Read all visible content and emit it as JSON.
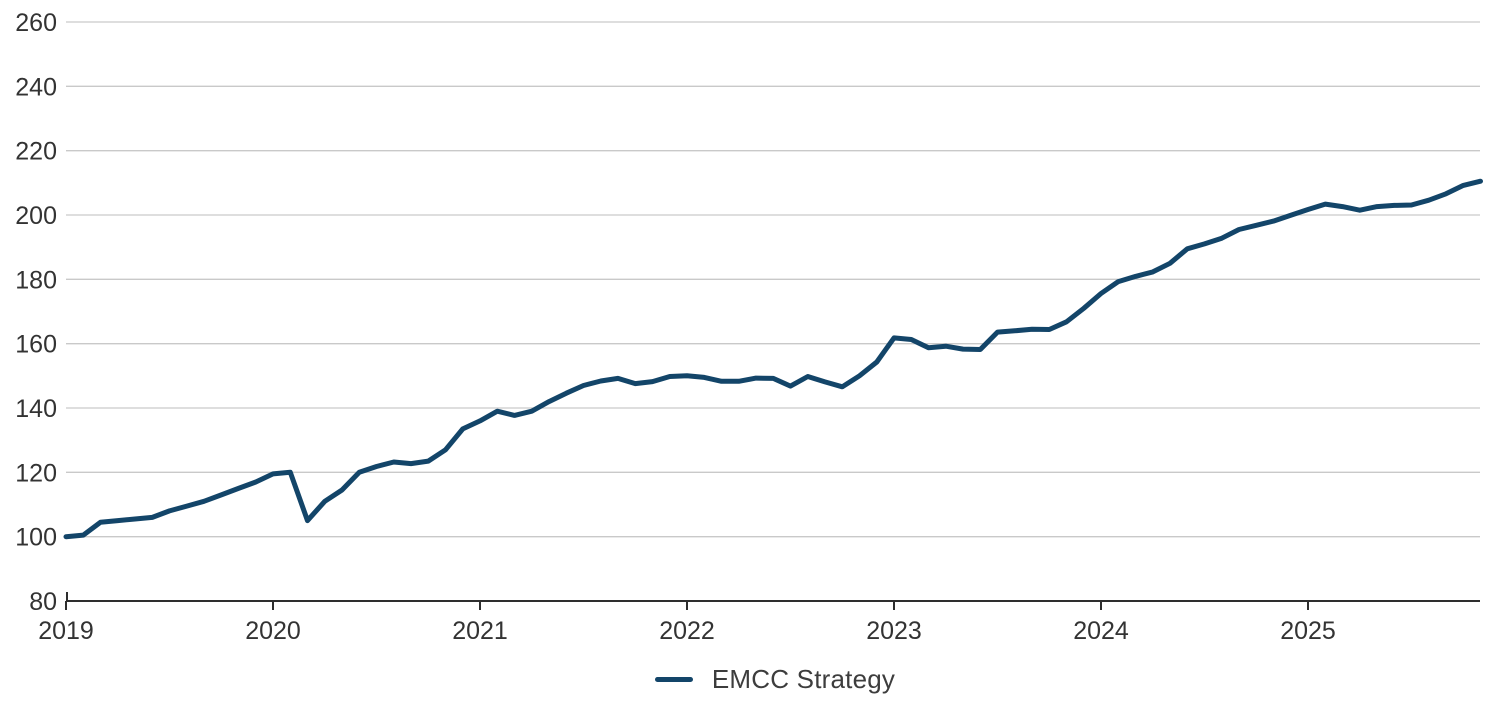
{
  "chart_data": {
    "type": "line",
    "title": "",
    "xlabel": "",
    "ylabel": "",
    "ylim": [
      80,
      260
    ],
    "yticks": [
      80,
      100,
      120,
      140,
      160,
      180,
      200,
      220,
      240,
      260
    ],
    "ytick_labels": [
      "80",
      "100",
      "120",
      "140",
      "160",
      "180",
      "200",
      "220",
      "240",
      "260"
    ],
    "xticks": [
      2019,
      2020,
      2021,
      2022,
      2023,
      2024,
      2025
    ],
    "xtick_labels": [
      "2019",
      "2020",
      "2021",
      "2022",
      "2023",
      "2024",
      "2025"
    ],
    "grid": "horizontal",
    "legend_position": "bottom-center",
    "x": [
      "2019-01",
      "2019-02",
      "2019-03",
      "2019-04",
      "2019-05",
      "2019-06",
      "2019-07",
      "2019-08",
      "2019-09",
      "2019-10",
      "2019-11",
      "2019-12",
      "2020-01",
      "2020-02",
      "2020-03",
      "2020-04",
      "2020-05",
      "2020-06",
      "2020-07",
      "2020-08",
      "2020-09",
      "2020-10",
      "2020-11",
      "2020-12",
      "2021-01",
      "2021-02",
      "2021-03",
      "2021-04",
      "2021-05",
      "2021-06",
      "2021-07",
      "2021-08",
      "2021-09",
      "2021-10",
      "2021-11",
      "2021-12",
      "2022-01",
      "2022-02",
      "2022-03",
      "2022-04",
      "2022-05",
      "2022-06",
      "2022-07",
      "2022-08",
      "2022-09",
      "2022-10",
      "2022-11",
      "2022-12",
      "2023-01",
      "2023-02",
      "2023-03",
      "2023-04",
      "2023-05",
      "2023-06",
      "2023-07",
      "2023-08",
      "2023-09",
      "2023-10",
      "2023-11",
      "2023-12",
      "2024-01",
      "2024-02",
      "2024-03",
      "2024-04",
      "2024-05",
      "2024-06",
      "2024-07",
      "2024-08",
      "2024-09",
      "2024-10",
      "2024-11",
      "2024-12",
      "2025-01",
      "2025-02",
      "2025-03",
      "2025-04",
      "2025-05",
      "2025-06",
      "2025-07",
      "2025-08",
      "2025-09",
      "2025-10",
      "2025-11"
    ],
    "series": [
      {
        "name": "EMCC Strategy",
        "color": "#134569",
        "values": [
          100,
          100.5,
          104.5,
          105,
          105.5,
          106,
          108,
          109.5,
          111,
          113,
          115,
          117,
          119.5,
          120,
          105,
          111,
          114.5,
          120,
          121.8,
          123.2,
          122.7,
          123.5,
          127,
          133.5,
          136,
          139,
          137.7,
          139,
          142,
          144.6,
          147,
          148.4,
          149.2,
          147.6,
          148.2,
          149.8,
          150,
          149.5,
          148.3,
          148.3,
          149.3,
          149.2,
          146.8,
          149.8,
          148.1,
          146.6,
          150,
          154.3,
          161.8,
          161.3,
          158.7,
          159.2,
          158.3,
          158.2,
          163.6,
          164,
          164.5,
          164.4,
          166.8,
          171,
          175.6,
          179.3,
          180.9,
          182.3,
          185,
          189.5,
          191,
          192.8,
          195.5,
          196.8,
          198.1,
          199.9,
          201.7,
          203.4,
          202.6,
          201.5,
          202.6,
          203,
          203.1,
          204.6,
          206.6,
          209.2,
          210.5
        ]
      }
    ]
  },
  "legend": {
    "label": "EMCC Strategy"
  },
  "colors": {
    "line": "#134569",
    "gridline": "#c9c9c9",
    "axis": "#2e2e2e",
    "tick_label": "#333333",
    "legend_text": "#3d3d3d",
    "background": "#ffffff"
  }
}
